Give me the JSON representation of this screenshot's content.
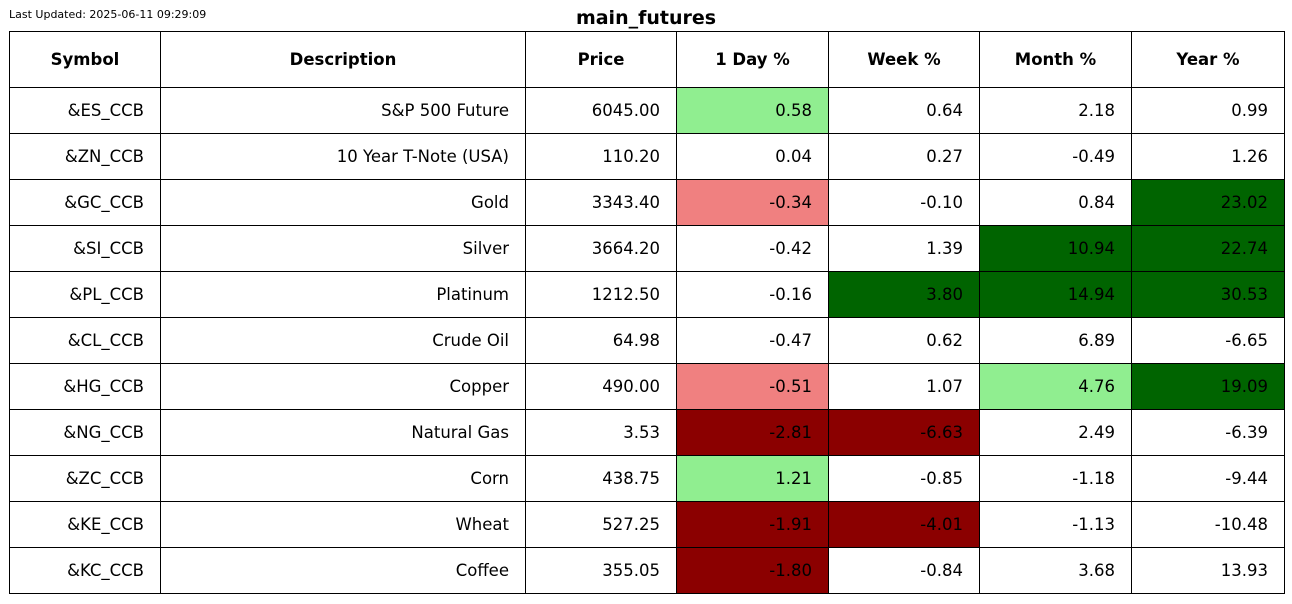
{
  "header": {
    "last_updated": "Last Updated: 2025-06-11 09:29:09",
    "title": "main_futures"
  },
  "colors": {
    "strong_up": "#006400",
    "up": "#90ee90",
    "down": "#f08080",
    "strong_down": "#8b0000",
    "neutral": "#ffffff"
  },
  "chart_data": {
    "type": "table",
    "title": "main_futures",
    "columns": [
      "Symbol",
      "Description",
      "Price",
      "1 Day %",
      "Week %",
      "Month %",
      "Year %"
    ],
    "rows": [
      {
        "cells": [
          "&ES_CCB",
          "S&P 500 Future",
          "6045.00",
          "0.58",
          "0.64",
          "2.18",
          "0.99"
        ],
        "fills": [
          "neutral",
          "neutral",
          "neutral",
          "up",
          "neutral",
          "neutral",
          "neutral"
        ]
      },
      {
        "cells": [
          "&ZN_CCB",
          "10 Year T-Note (USA)",
          "110.20",
          "0.04",
          "0.27",
          "-0.49",
          "1.26"
        ],
        "fills": [
          "neutral",
          "neutral",
          "neutral",
          "neutral",
          "neutral",
          "neutral",
          "neutral"
        ]
      },
      {
        "cells": [
          "&GC_CCB",
          "Gold",
          "3343.40",
          "-0.34",
          "-0.10",
          "0.84",
          "23.02"
        ],
        "fills": [
          "neutral",
          "neutral",
          "neutral",
          "down",
          "neutral",
          "neutral",
          "strong_up"
        ]
      },
      {
        "cells": [
          "&SI_CCB",
          "Silver",
          "3664.20",
          "-0.42",
          "1.39",
          "10.94",
          "22.74"
        ],
        "fills": [
          "neutral",
          "neutral",
          "neutral",
          "neutral",
          "neutral",
          "strong_up",
          "strong_up"
        ]
      },
      {
        "cells": [
          "&PL_CCB",
          "Platinum",
          "1212.50",
          "-0.16",
          "3.80",
          "14.94",
          "30.53"
        ],
        "fills": [
          "neutral",
          "neutral",
          "neutral",
          "neutral",
          "strong_up",
          "strong_up",
          "strong_up"
        ]
      },
      {
        "cells": [
          "&CL_CCB",
          "Crude Oil",
          "64.98",
          "-0.47",
          "0.62",
          "6.89",
          "-6.65"
        ],
        "fills": [
          "neutral",
          "neutral",
          "neutral",
          "neutral",
          "neutral",
          "neutral",
          "neutral"
        ]
      },
      {
        "cells": [
          "&HG_CCB",
          "Copper",
          "490.00",
          "-0.51",
          "1.07",
          "4.76",
          "19.09"
        ],
        "fills": [
          "neutral",
          "neutral",
          "neutral",
          "down",
          "neutral",
          "up",
          "strong_up"
        ]
      },
      {
        "cells": [
          "&NG_CCB",
          "Natural Gas",
          "3.53",
          "-2.81",
          "-6.63",
          "2.49",
          "-6.39"
        ],
        "fills": [
          "neutral",
          "neutral",
          "neutral",
          "strong_down",
          "strong_down",
          "neutral",
          "neutral"
        ]
      },
      {
        "cells": [
          "&ZC_CCB",
          "Corn",
          "438.75",
          "1.21",
          "-0.85",
          "-1.18",
          "-9.44"
        ],
        "fills": [
          "neutral",
          "neutral",
          "neutral",
          "up",
          "neutral",
          "neutral",
          "neutral"
        ]
      },
      {
        "cells": [
          "&KE_CCB",
          "Wheat",
          "527.25",
          "-1.91",
          "-4.01",
          "-1.13",
          "-10.48"
        ],
        "fills": [
          "neutral",
          "neutral",
          "neutral",
          "strong_down",
          "strong_down",
          "neutral",
          "neutral"
        ]
      },
      {
        "cells": [
          "&KC_CCB",
          "Coffee",
          "355.05",
          "-1.80",
          "-0.84",
          "3.68",
          "13.93"
        ],
        "fills": [
          "neutral",
          "neutral",
          "neutral",
          "strong_down",
          "neutral",
          "neutral",
          "neutral"
        ]
      }
    ]
  }
}
